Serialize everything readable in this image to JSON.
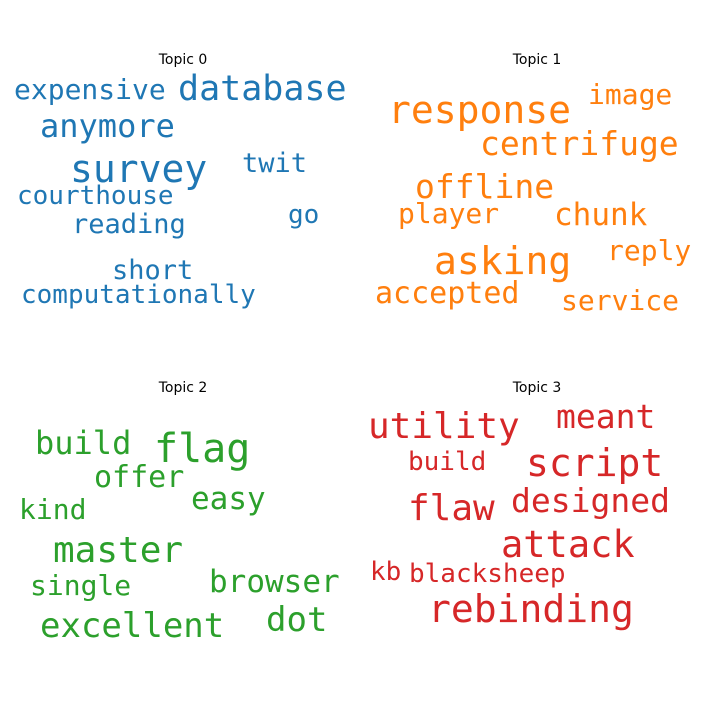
{
  "chart_data": [
    {
      "type": "wordcloud",
      "title": "Topic 0",
      "color": "#1f77b4",
      "words": [
        {
          "text": "survey",
          "weight": 1.0
        },
        {
          "text": "database",
          "weight": 0.92
        },
        {
          "text": "anymore",
          "weight": 0.85
        },
        {
          "text": "expensive",
          "weight": 0.75
        },
        {
          "text": "twit",
          "weight": 0.72
        },
        {
          "text": "short",
          "weight": 0.72
        },
        {
          "text": "reading",
          "weight": 0.71
        },
        {
          "text": "courthouse",
          "weight": 0.7
        },
        {
          "text": "go",
          "weight": 0.7
        },
        {
          "text": "computationally",
          "weight": 0.7
        }
      ]
    },
    {
      "type": "wordcloud",
      "title": "Topic 1",
      "color": "#ff7f0e",
      "words": [
        {
          "text": "response",
          "weight": 1.0
        },
        {
          "text": "asking",
          "weight": 1.0
        },
        {
          "text": "centrifuge",
          "weight": 0.86
        },
        {
          "text": "offline",
          "weight": 0.86
        },
        {
          "text": "chunk",
          "weight": 0.82
        },
        {
          "text": "accepted",
          "weight": 0.8
        },
        {
          "text": "image",
          "weight": 0.75
        },
        {
          "text": "player",
          "weight": 0.75
        },
        {
          "text": "reply",
          "weight": 0.75
        },
        {
          "text": "service",
          "weight": 0.75
        }
      ]
    },
    {
      "type": "wordcloud",
      "title": "Topic 2",
      "color": "#2ca02c",
      "words": [
        {
          "text": "flag",
          "weight": 1.0
        },
        {
          "text": "master",
          "weight": 0.92
        },
        {
          "text": "excellent",
          "weight": 0.85
        },
        {
          "text": "build",
          "weight": 0.8
        },
        {
          "text": "dot",
          "weight": 0.8
        },
        {
          "text": "browser",
          "weight": 0.79
        },
        {
          "text": "easy",
          "weight": 0.77
        },
        {
          "text": "offer",
          "weight": 0.75
        },
        {
          "text": "kind",
          "weight": 0.7
        },
        {
          "text": "single",
          "weight": 0.7
        }
      ]
    },
    {
      "type": "wordcloud",
      "title": "Topic 3",
      "color": "#d62728",
      "words": [
        {
          "text": "script",
          "weight": 1.0
        },
        {
          "text": "rebinding",
          "weight": 1.0
        },
        {
          "text": "attack",
          "weight": 0.95
        },
        {
          "text": "utility",
          "weight": 0.9
        },
        {
          "text": "designed",
          "weight": 0.86
        },
        {
          "text": "flaw",
          "weight": 0.86
        },
        {
          "text": "meant",
          "weight": 0.82
        },
        {
          "text": "build",
          "weight": 0.7
        },
        {
          "text": "blacksheep",
          "weight": 0.7
        },
        {
          "text": "kb",
          "weight": 0.66
        }
      ]
    }
  ]
}
